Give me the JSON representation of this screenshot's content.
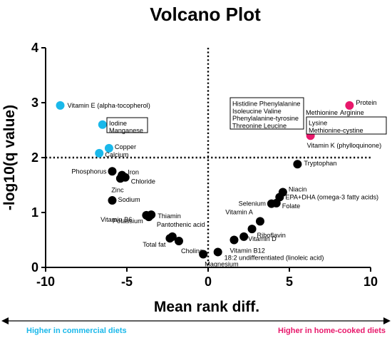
{
  "chart_data": {
    "type": "scatter",
    "title": "Volcano Plot",
    "xlabel": "Mean rank diff.",
    "ylabel": "-log10(q value)",
    "xlim": [
      -10,
      10
    ],
    "ylim": [
      0,
      4
    ],
    "xticks": [
      "-10",
      "-5",
      "0",
      "5",
      "10"
    ],
    "yticks": [
      "0",
      "1",
      "2",
      "3",
      "4"
    ],
    "threshold_y": 2,
    "threshold_x": 0,
    "grid": false,
    "colors": {
      "commercial": "#1ab8ea",
      "home_cooked": "#e8186b",
      "not_significant": "#000000",
      "threshold_line": "#000000"
    },
    "points": [
      {
        "x": -9.1,
        "y": 2.95,
        "group": "commercial",
        "label": "Vitamin E (alpha-tocopherol)"
      },
      {
        "x": -6.5,
        "y": 2.6,
        "group": "commercial",
        "label": ""
      },
      {
        "x": -6.1,
        "y": 2.17,
        "group": "commercial",
        "label": "Copper"
      },
      {
        "x": -6.7,
        "y": 2.08,
        "group": "commercial",
        "label": "Calcium"
      },
      {
        "x": 8.7,
        "y": 2.95,
        "group": "home_cooked",
        "label": "Protein"
      },
      {
        "x": 6.5,
        "y": 2.6,
        "group": "home_cooked",
        "label": ""
      },
      {
        "x": 6.8,
        "y": 2.6,
        "group": "home_cooked",
        "label": ""
      },
      {
        "x": 7.0,
        "y": 2.6,
        "group": "home_cooked",
        "label": ""
      },
      {
        "x": 6.3,
        "y": 2.4,
        "group": "home_cooked",
        "label": "Vitamin K (phylloquinone)"
      },
      {
        "x": -5.9,
        "y": 1.75,
        "group": "not_significant",
        "label": "Phosphorus"
      },
      {
        "x": -5.3,
        "y": 1.68,
        "group": "not_significant",
        "label": "Iron"
      },
      {
        "x": -5.1,
        "y": 1.64,
        "group": "not_significant",
        "label": "Chloride"
      },
      {
        "x": -5.4,
        "y": 1.62,
        "group": "not_significant",
        "label": "Zinc"
      },
      {
        "x": -5.9,
        "y": 1.22,
        "group": "not_significant",
        "label": "Sodium"
      },
      {
        "x": -3.8,
        "y": 0.95,
        "group": "not_significant",
        "label": "Vitamin B6"
      },
      {
        "x": -3.5,
        "y": 0.96,
        "group": "not_significant",
        "label": "Thiamin"
      },
      {
        "x": -3.65,
        "y": 0.92,
        "group": "not_significant",
        "label": "Potassium"
      },
      {
        "x": -2.2,
        "y": 0.56,
        "group": "not_significant",
        "label": "Pantothenic acid"
      },
      {
        "x": -2.35,
        "y": 0.53,
        "group": "not_significant",
        "label": "Total fat"
      },
      {
        "x": -1.8,
        "y": 0.48,
        "group": "not_significant",
        "label": "Choline"
      },
      {
        "x": -0.3,
        "y": 0.24,
        "group": "not_significant",
        "label": "Magnesium"
      },
      {
        "x": 0.6,
        "y": 0.28,
        "group": "not_significant",
        "label": "18:2 undifferentiated (linoleic acid)"
      },
      {
        "x": 5.5,
        "y": 1.88,
        "group": "not_significant",
        "label": "Tryptophan"
      },
      {
        "x": 4.6,
        "y": 1.37,
        "group": "not_significant",
        "label": "Niacin"
      },
      {
        "x": 4.4,
        "y": 1.28,
        "group": "not_significant",
        "label": "EPA+DHA (omega-3 fatty acids)"
      },
      {
        "x": 3.9,
        "y": 1.16,
        "group": "not_significant",
        "label": "Selenium"
      },
      {
        "x": 4.2,
        "y": 1.17,
        "group": "not_significant",
        "label": "Folate"
      },
      {
        "x": 3.2,
        "y": 0.84,
        "group": "not_significant",
        "label": "Vitamin A"
      },
      {
        "x": 2.7,
        "y": 0.7,
        "group": "not_significant",
        "label": "Riboflavin"
      },
      {
        "x": 2.2,
        "y": 0.56,
        "group": "not_significant",
        "label": "Vitamin D"
      },
      {
        "x": 1.6,
        "y": 0.5,
        "group": "not_significant",
        "label": "Vitamin B12"
      }
    ],
    "boxes": [
      {
        "group": "commercial",
        "lines": [
          "Iodine",
          "Manganese"
        ]
      },
      {
        "group": "home_cooked_left",
        "lines": [
          "Histidine  Phenylalanine",
          "Isoleucine  Valine",
          "Phenylalanine-tyrosine",
          "Threonine  Leucine"
        ]
      },
      {
        "group": "home_cooked_right",
        "lines": [
          "Lysine",
          "Methionine-cystine"
        ]
      }
    ],
    "free_labels": [
      "Methionine",
      "Arginine"
    ],
    "direction": {
      "left": "Higher in commercial diets",
      "right": "Higher in home-cooked diets"
    }
  }
}
